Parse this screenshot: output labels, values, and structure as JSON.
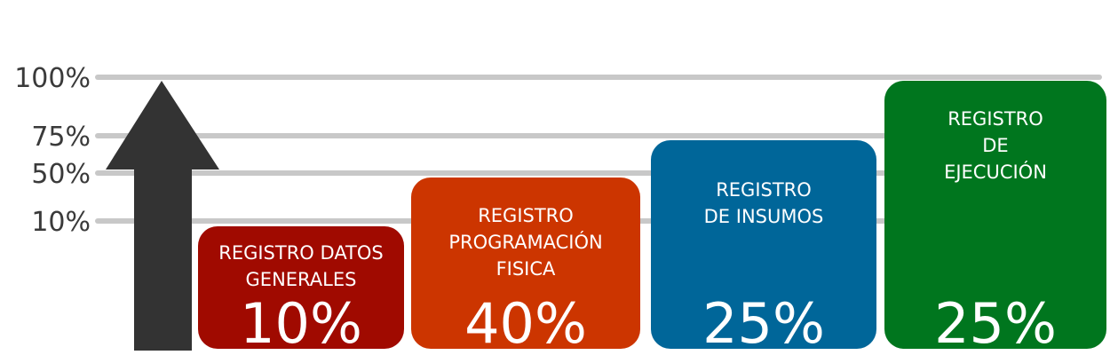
{
  "chart_data": {
    "type": "bar",
    "y_ticks": [
      {
        "label": "100%",
        "value": 100
      },
      {
        "label": "75%",
        "value": 75
      },
      {
        "label": "50%",
        "value": 50
      },
      {
        "label": "10%",
        "value": 10
      }
    ],
    "categories": [
      {
        "label": [
          "REGISTRO DATOS",
          "GENERALES"
        ],
        "value": 10,
        "value_label": "10%",
        "color": "#a00a00"
      },
      {
        "label": [
          "REGISTRO",
          "PROGRAMACIÓN",
          "FISICA"
        ],
        "value": 40,
        "value_label": "40%",
        "color": "#cc3500"
      },
      {
        "label": [
          "REGISTRO",
          "DE INSUMOS"
        ],
        "value": 25,
        "value_label": "25%",
        "color": "#006699"
      },
      {
        "label": [
          "REGISTRO",
          "DE",
          "EJECUCIÓN"
        ],
        "value": 25,
        "value_label": "25%",
        "color": "#00761e"
      }
    ],
    "grid": true,
    "arrow_color": "#333333",
    "grid_color": "#c8c8c8"
  }
}
